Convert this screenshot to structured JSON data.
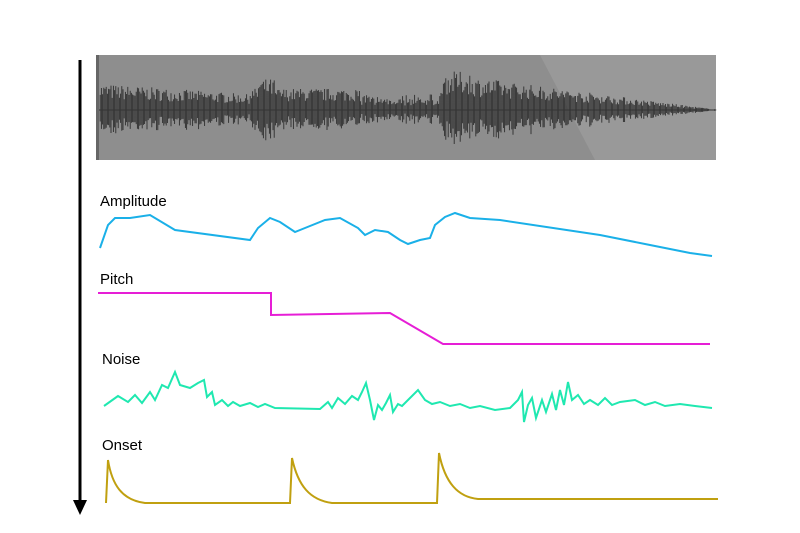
{
  "labels": {
    "amplitude": "Amplitude",
    "pitch": "Pitch",
    "noise": "Noise",
    "onset": "Onset"
  }
}
